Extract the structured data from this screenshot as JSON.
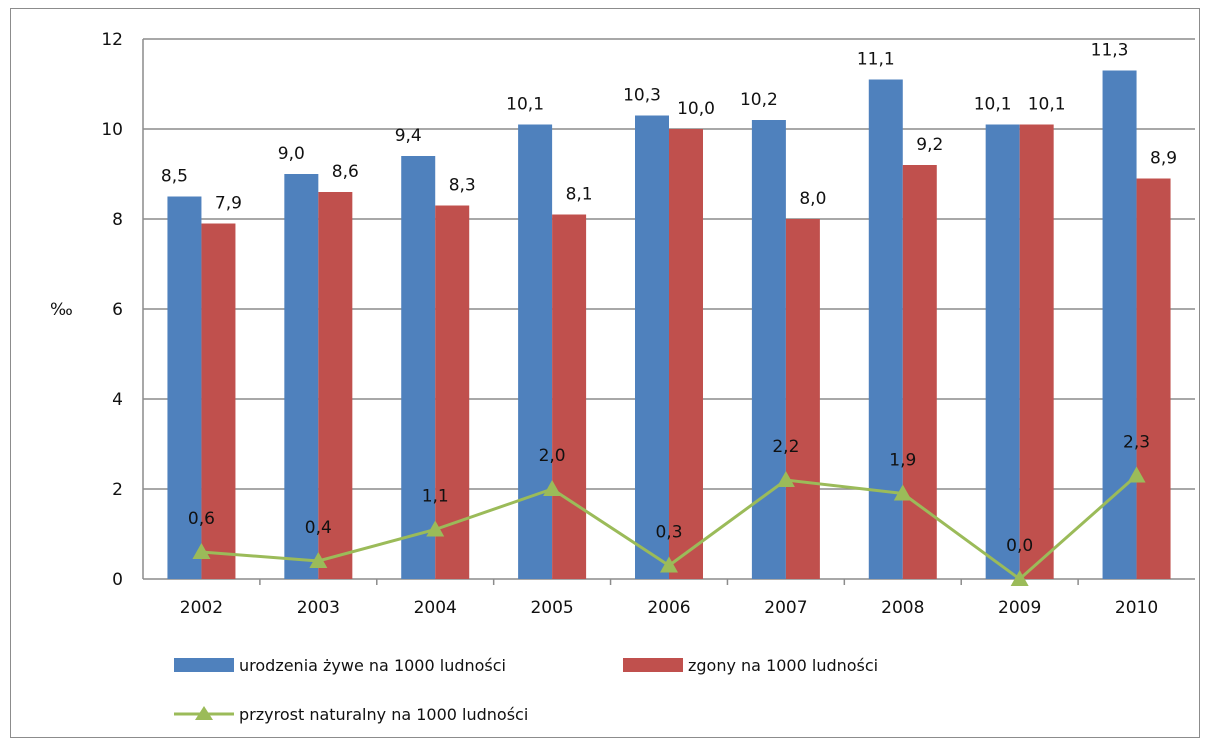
{
  "chart_data": {
    "type": "bar",
    "ylabel": "‰",
    "ylim": [
      0,
      12
    ],
    "yticks": [
      0,
      2,
      4,
      6,
      8,
      10,
      12
    ],
    "ytick_labels": [
      "0",
      "2",
      "4",
      "6",
      "8",
      "10",
      "12"
    ],
    "grid": true,
    "categories": [
      "2002",
      "2003",
      "2004",
      "2005",
      "2006",
      "2007",
      "2008",
      "2009",
      "2010"
    ],
    "series": [
      {
        "name": "urodzenia żywe na 1000 ludności",
        "type": "bar",
        "color": "#4F81BD",
        "values": [
          8.5,
          9.0,
          9.4,
          10.1,
          10.3,
          10.2,
          11.1,
          10.1,
          11.3
        ],
        "labels": [
          "8,5",
          "9,0",
          "9,4",
          "10,1",
          "10,3",
          "10,2",
          "11,1",
          "10,1",
          "11,3"
        ]
      },
      {
        "name": "zgony na 1000 ludności",
        "type": "bar",
        "color": "#C0504D",
        "values": [
          7.9,
          8.6,
          8.3,
          8.1,
          10.0,
          8.0,
          9.2,
          10.1,
          8.9
        ],
        "labels": [
          "7,9",
          "8,6",
          "8,3",
          "8,1",
          "10,0",
          "8,0",
          "9,2",
          "10,1",
          "8,9"
        ]
      },
      {
        "name": "przyrost naturalny na 1000 ludności",
        "type": "line",
        "color": "#9BBB59",
        "values": [
          0.6,
          0.4,
          1.1,
          2.0,
          0.3,
          2.2,
          1.9,
          0.0,
          2.3
        ],
        "labels": [
          "0,6",
          "0,4",
          "1,1",
          "2,0",
          "0,3",
          "2,2",
          "1,9",
          "0,0",
          "2,3"
        ]
      }
    ],
    "legend_position": "bottom"
  }
}
